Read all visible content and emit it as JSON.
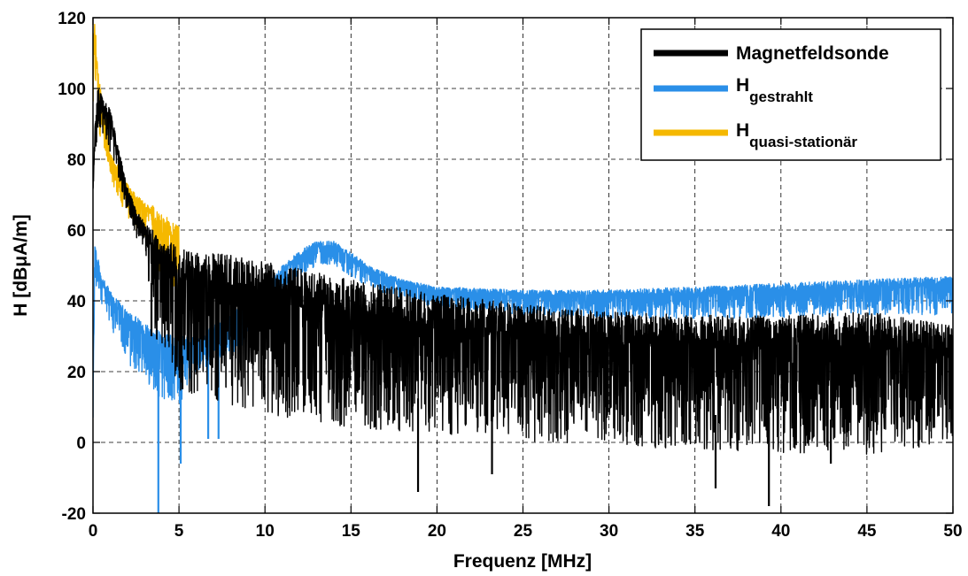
{
  "chart_data": {
    "type": "line",
    "xlabel": "Frequenz [MHz]",
    "ylabel": "H [dBμA/m]",
    "xlim": [
      0,
      50
    ],
    "ylim": [
      -20,
      120
    ],
    "x_ticks": [
      "0",
      "5",
      "10",
      "15",
      "20",
      "25",
      "30",
      "35",
      "40",
      "45",
      "50"
    ],
    "y_ticks": [
      "-20",
      "0",
      "20",
      "40",
      "60",
      "80",
      "100",
      "120"
    ],
    "grid": true,
    "legend_position": "top-right",
    "series": [
      {
        "name": "Magnetfeldsonde",
        "color": "#000000",
        "envelope": {
          "x": [
            0,
            0.1,
            0.3,
            0.5,
            1,
            1.5,
            2,
            2.5,
            3,
            3.5,
            4,
            5,
            6,
            8,
            10,
            12,
            15,
            20,
            25,
            30,
            35,
            40,
            45,
            50
          ],
          "upper": [
            72,
            88,
            101,
            98,
            94,
            83,
            72,
            66,
            62,
            60,
            58,
            55,
            54,
            53,
            51,
            49,
            46,
            42,
            39,
            37,
            36,
            36,
            37,
            33
          ],
          "lower": [
            70,
            75,
            90,
            88,
            82,
            74,
            65,
            58,
            55,
            30,
            28,
            15,
            12,
            10,
            8,
            6,
            4,
            2,
            0,
            -1,
            -2,
            -3,
            -4,
            0
          ]
        },
        "deep_dips": [
          [
            3.4,
            30
          ],
          [
            5.2,
            15
          ],
          [
            18.9,
            -14
          ],
          [
            23.2,
            -9
          ],
          [
            36.2,
            -13
          ],
          [
            39.3,
            -18
          ],
          [
            42.9,
            -6
          ]
        ]
      },
      {
        "name": "H_gestrahlt",
        "label_main": "H",
        "label_sub": "gestrahlt",
        "color": "#2A8FE8",
        "envelope": {
          "x": [
            0,
            0.1,
            0.5,
            1,
            2,
            3,
            4,
            5,
            6,
            8,
            10,
            11,
            12,
            13,
            14,
            15,
            16,
            17,
            18,
            20,
            25,
            30,
            35,
            40,
            45,
            50
          ],
          "upper": [
            15,
            57,
            47,
            43,
            37,
            34,
            31,
            30,
            30,
            36,
            44,
            50,
            54,
            57,
            57,
            54,
            50,
            48,
            46,
            44,
            43,
            43,
            44,
            45,
            46,
            47
          ],
          "lower": [
            0,
            44,
            38,
            33,
            22,
            18,
            12,
            10,
            20,
            25,
            32,
            42,
            47,
            50,
            50,
            47,
            44,
            42,
            40,
            38,
            36,
            35,
            35,
            35,
            36,
            36
          ]
        },
        "deep_dips": [
          [
            3.8,
            -20
          ],
          [
            5.1,
            -6
          ],
          [
            6.7,
            1
          ],
          [
            7.3,
            1
          ]
        ]
      },
      {
        "name": "H_quasi-stationär",
        "label_main": "H",
        "label_sub": "quasi-stationär",
        "color": "#F5B800",
        "envelope": {
          "x": [
            0,
            0.1,
            0.3,
            0.6,
            1,
            1.5,
            2,
            2.5,
            3,
            3.5,
            4,
            4.5,
            5
          ],
          "upper": [
            110,
            120,
            105,
            95,
            82,
            78,
            73,
            70,
            68,
            67,
            65,
            63,
            62
          ],
          "lower": [
            90,
            95,
            88,
            84,
            75,
            68,
            64,
            60,
            58,
            55,
            40,
            38,
            42
          ]
        }
      }
    ]
  }
}
